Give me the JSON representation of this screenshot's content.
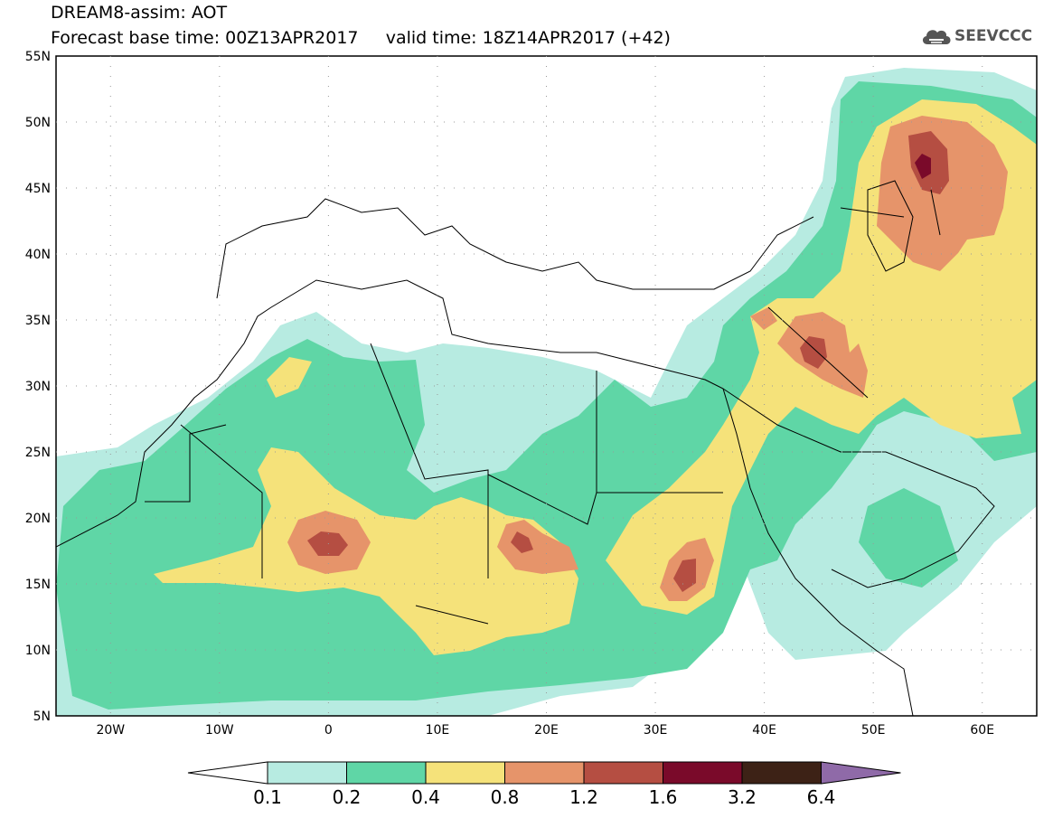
{
  "header": {
    "title_line1": "DREAM8-assim: AOT",
    "title_line2": "Forecast base time: 00Z13APR2017     valid time: 18Z14APR2017 (+42)",
    "logo_text": "SEEVCCC"
  },
  "map": {
    "lon_range": [
      -25,
      65
    ],
    "lat_range": [
      5,
      55
    ],
    "lat_labels": [
      "55N",
      "50N",
      "45N",
      "40N",
      "35N",
      "30N",
      "25N",
      "20N",
      "15N",
      "10N",
      "5N"
    ],
    "lon_labels": [
      "20W",
      "10W",
      "0",
      "10E",
      "20E",
      "30E",
      "40E",
      "50E",
      "60E"
    ]
  },
  "colorbar": {
    "labels": [
      "0.1",
      "0.2",
      "0.4",
      "0.8",
      "1.2",
      "1.6",
      "3.2",
      "6.4"
    ],
    "colors": [
      "#ffffff",
      "#b7ebe1",
      "#5fd6a6",
      "#f5e27a",
      "#e6946a",
      "#b54e42",
      "#7a0a2a",
      "#3d2216",
      "#8f6aa8"
    ]
  },
  "palette": {
    "c1": "#b7ebe1",
    "c2": "#5fd6a6",
    "c3": "#f5e27a",
    "c4": "#e6946a",
    "c5": "#b54e42",
    "c6": "#7a0a2a"
  }
}
